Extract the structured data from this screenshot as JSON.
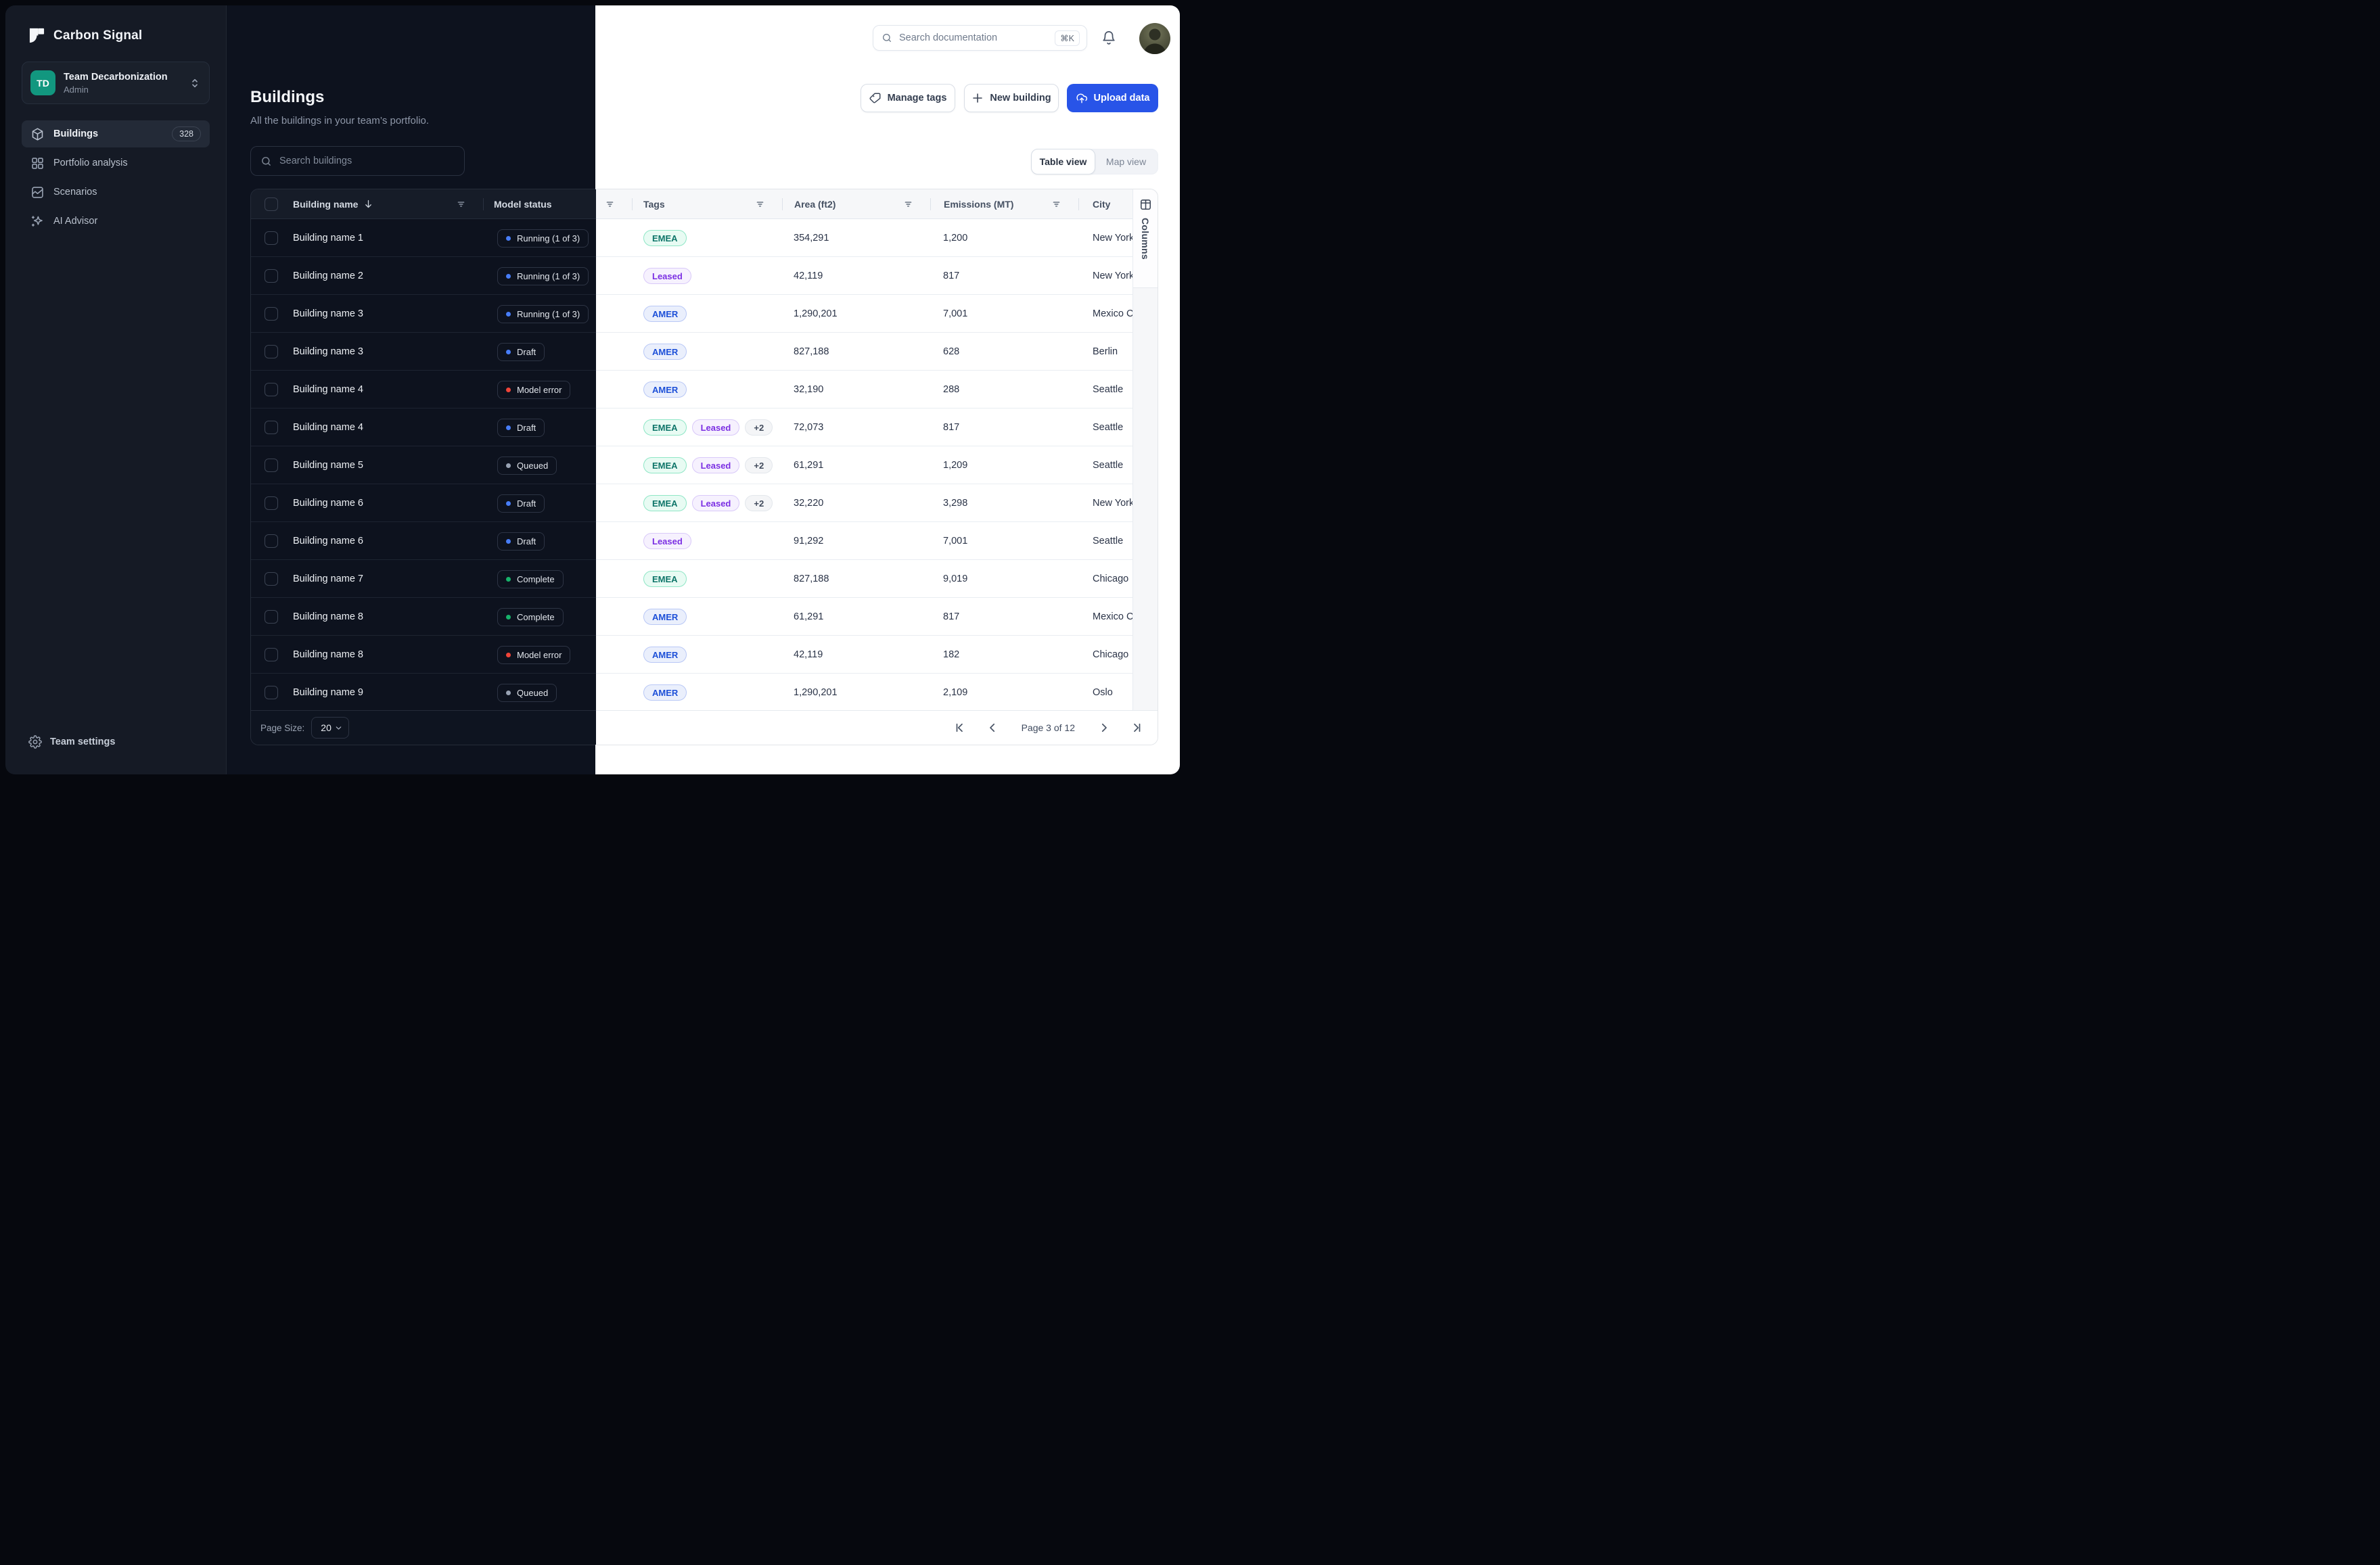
{
  "brand": {
    "name": "Carbon Signal"
  },
  "team": {
    "initials": "TD",
    "name": "Team Decarbonization",
    "role": "Admin",
    "avatar_color": "#12977f"
  },
  "sidebar": {
    "items": [
      {
        "label": "Buildings",
        "badge": "328",
        "active": true
      },
      {
        "label": "Portfolio analysis"
      },
      {
        "label": "Scenarios"
      },
      {
        "label": "AI Advisor"
      }
    ],
    "footer_label": "Team settings"
  },
  "topbar": {
    "search_placeholder": "Search documentation",
    "shortcut": "⌘K"
  },
  "header": {
    "title": "Buildings",
    "subtitle": "All the buildings in your team’s portfolio.",
    "search_placeholder": "Search buildings"
  },
  "actions": {
    "manage_tags": "Manage tags",
    "new_building": "New building",
    "upload_data": "Upload data"
  },
  "view_toggle": {
    "options": [
      "Table view",
      "Map view"
    ],
    "active": "Table view"
  },
  "columns_panel": {
    "label": "Columns"
  },
  "table": {
    "columns": [
      "Building name",
      "Model status",
      "Tags",
      "Area (ft2)",
      "Emissions (MT)",
      "City"
    ],
    "rows": [
      {
        "name": "Building name 1",
        "status": {
          "label": "Running (1 of 3)",
          "kind": "running"
        },
        "tags": [
          "EMEA"
        ],
        "extra": "",
        "area": "354,291",
        "emissions": "1,200",
        "city": "New York"
      },
      {
        "name": "Building name 2",
        "status": {
          "label": "Running (1 of 3)",
          "kind": "running"
        },
        "tags": [
          "Leased"
        ],
        "extra": "",
        "area": "42,119",
        "emissions": "817",
        "city": "New York"
      },
      {
        "name": "Building name 3",
        "status": {
          "label": "Running (1 of 3)",
          "kind": "running"
        },
        "tags": [
          "AMER"
        ],
        "extra": "",
        "area": "1,290,201",
        "emissions": "7,001",
        "city": "Mexico City"
      },
      {
        "name": "Building name 3",
        "status": {
          "label": "Draft",
          "kind": "draft"
        },
        "tags": [
          "AMER"
        ],
        "extra": "",
        "area": "827,188",
        "emissions": "628",
        "city": "Berlin"
      },
      {
        "name": "Building name 4",
        "status": {
          "label": "Model error",
          "kind": "model_error"
        },
        "tags": [
          "AMER"
        ],
        "extra": "",
        "area": "32,190",
        "emissions": "288",
        "city": "Seattle"
      },
      {
        "name": "Building name 4",
        "status": {
          "label": "Draft",
          "kind": "draft"
        },
        "tags": [
          "EMEA",
          "Leased"
        ],
        "extra": "+2",
        "area": "72,073",
        "emissions": "817",
        "city": "Seattle"
      },
      {
        "name": "Building name 5",
        "status": {
          "label": "Queued",
          "kind": "queued"
        },
        "tags": [
          "EMEA",
          "Leased"
        ],
        "extra": "+2",
        "area": "61,291",
        "emissions": "1,209",
        "city": "Seattle"
      },
      {
        "name": "Building name 6",
        "status": {
          "label": "Draft",
          "kind": "draft"
        },
        "tags": [
          "EMEA",
          "Leased"
        ],
        "extra": "+2",
        "area": "32,220",
        "emissions": "3,298",
        "city": "New York"
      },
      {
        "name": "Building name 6",
        "status": {
          "label": "Draft",
          "kind": "draft"
        },
        "tags": [
          "Leased"
        ],
        "extra": "",
        "area": "91,292",
        "emissions": "7,001",
        "city": "Seattle"
      },
      {
        "name": "Building name 7",
        "status": {
          "label": "Complete",
          "kind": "complete"
        },
        "tags": [
          "EMEA"
        ],
        "extra": "",
        "area": "827,188",
        "emissions": "9,019",
        "city": "Chicago"
      },
      {
        "name": "Building name 8",
        "status": {
          "label": "Complete",
          "kind": "complete"
        },
        "tags": [
          "AMER"
        ],
        "extra": "",
        "area": "61,291",
        "emissions": "817",
        "city": "Mexico City"
      },
      {
        "name": "Building name 8",
        "status": {
          "label": "Model error",
          "kind": "model_error"
        },
        "tags": [
          "AMER"
        ],
        "extra": "",
        "area": "42,119",
        "emissions": "182",
        "city": "Chicago"
      },
      {
        "name": "Building name 9",
        "status": {
          "label": "Queued",
          "kind": "queued"
        },
        "tags": [
          "AMER"
        ],
        "extra": "",
        "area": "1,290,201",
        "emissions": "2,109",
        "city": "Oslo"
      }
    ],
    "footer": {
      "page_size_label": "Page Size:",
      "page_size": "20",
      "page_indicator": "Page 3 of 12"
    }
  },
  "colors": {
    "accent": "#2854e8",
    "status": {
      "running": "#477df8",
      "draft": "#477df8",
      "queued": "#98a2b3",
      "complete": "#17b26a",
      "model_error": "#f04438"
    },
    "tags": {
      "EMEA": {
        "bg": "#e8fbf3",
        "border": "#8fe6c6",
        "text": "#0e7569"
      },
      "Leased": {
        "bg": "#f6f1fe",
        "border": "#d9c9f9",
        "text": "#7b2fe3"
      },
      "AMER": {
        "bg": "#eaeffc",
        "border": "#b9c8f6",
        "text": "#1d50d8"
      },
      "more": {
        "bg": "#f4f5f7",
        "border": "#e3e7ec",
        "text": "#414b5c"
      }
    }
  }
}
